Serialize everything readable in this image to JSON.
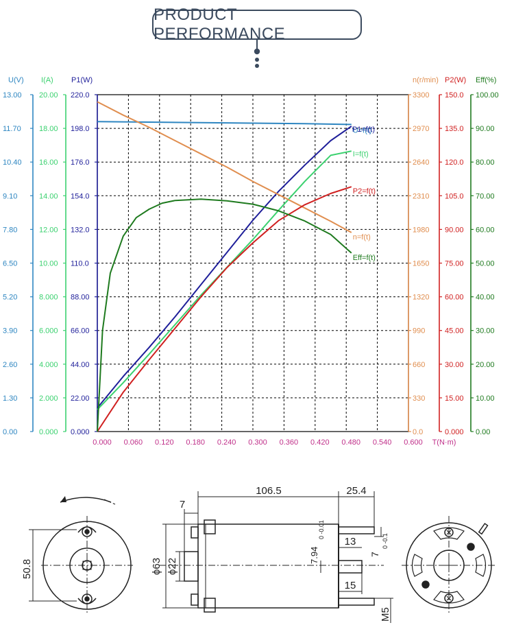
{
  "page": {
    "title": "PRODUCT PERFORMANCE"
  },
  "colors": {
    "u": "#2e86c1",
    "i": "#3bd16f",
    "p1": "#1f1f9a",
    "n": "#e08e4f",
    "p2": "#d02020",
    "eff": "#1e7a1e",
    "t": "#c0308a",
    "title": "#3b4a5e"
  },
  "chart_data": {
    "type": "line",
    "x_axis": {
      "label": "T(N·m)",
      "range": [
        0,
        0.6
      ],
      "ticks": [
        "0.000",
        "0.060",
        "0.120",
        "0.180",
        "0.240",
        "0.300",
        "0.360",
        "0.420",
        "0.480",
        "0.540",
        "0.600"
      ]
    },
    "left_axes": [
      {
        "key": "u",
        "label": "U(V)",
        "range": [
          0,
          13
        ],
        "ticks": [
          "0.00",
          "1.30",
          "2.60",
          "3.90",
          "5.20",
          "6.50",
          "7.80",
          "9.10",
          "10.40",
          "11.70",
          "13.00"
        ]
      },
      {
        "key": "i",
        "label": "I(A)",
        "range": [
          0,
          20
        ],
        "ticks": [
          "0.000",
          "2.000",
          "4.000",
          "6.000",
          "8.000",
          "10.00",
          "12.00",
          "14.00",
          "16.00",
          "18.00",
          "20.00"
        ]
      },
      {
        "key": "p1",
        "label": "P1(W)",
        "range": [
          0,
          220
        ],
        "ticks": [
          "0.000",
          "22.00",
          "44.00",
          "66.00",
          "88.00",
          "110.0",
          "132.0",
          "154.0",
          "176.0",
          "198.0",
          "220.0"
        ]
      }
    ],
    "right_axes": [
      {
        "key": "n",
        "label": "n(r/min)",
        "range": [
          0,
          3300
        ],
        "ticks": [
          "0.0",
          "330",
          "660",
          "990",
          "1320",
          "1650",
          "1980",
          "2310",
          "2640",
          "2970",
          "3300"
        ]
      },
      {
        "key": "p2",
        "label": "P2(W)",
        "range": [
          0,
          150
        ],
        "ticks": [
          "0.000",
          "15.00",
          "30.00",
          "45.00",
          "60.00",
          "75.00",
          "90.00",
          "105.0",
          "120.0",
          "135.0",
          "150.0"
        ]
      },
      {
        "key": "eff",
        "label": "Eff(%)",
        "range": [
          0,
          100
        ],
        "ticks": [
          "0.00",
          "10.00",
          "20.00",
          "30.00",
          "40.00",
          "50.00",
          "60.00",
          "70.00",
          "80.00",
          "90.00",
          "100.00"
        ]
      }
    ],
    "series": [
      {
        "key": "u",
        "name": "U=f(t)",
        "axis": "u",
        "x": [
          0,
          0.1,
          0.2,
          0.3,
          0.4,
          0.49
        ],
        "y": [
          11.96,
          11.94,
          11.92,
          11.9,
          11.88,
          11.85
        ]
      },
      {
        "key": "p1",
        "name": "P1=f(t)",
        "axis": "p1",
        "x": [
          0,
          0.05,
          0.1,
          0.15,
          0.2,
          0.25,
          0.3,
          0.35,
          0.4,
          0.45,
          0.49
        ],
        "y": [
          15.4,
          36,
          55,
          75,
          96,
          117,
          138,
          157,
          174,
          190,
          199.4
        ]
      },
      {
        "key": "i",
        "name": "I=f(t)",
        "axis": "i",
        "x": [
          0,
          0.05,
          0.1,
          0.15,
          0.2,
          0.25,
          0.3,
          0.35,
          0.4,
          0.45,
          0.49
        ],
        "y": [
          1.3,
          2.9,
          4.6,
          6.35,
          8.1,
          9.75,
          11.4,
          13.15,
          14.85,
          16.4,
          16.65
        ]
      },
      {
        "key": "n",
        "name": "n=f(t)",
        "axis": "n",
        "x": [
          0,
          0.05,
          0.1,
          0.15,
          0.2,
          0.25,
          0.3,
          0.35,
          0.4,
          0.45,
          0.49
        ],
        "y": [
          3230,
          3100,
          2980,
          2850,
          2720,
          2590,
          2450,
          2320,
          2190,
          2060,
          1950
        ]
      },
      {
        "key": "p2",
        "name": "P2=f(t)",
        "axis": "p2",
        "x": [
          0,
          0.02,
          0.05,
          0.1,
          0.15,
          0.2,
          0.25,
          0.3,
          0.35,
          0.4,
          0.45,
          0.49
        ],
        "y": [
          0,
          7,
          17.5,
          32,
          46,
          60,
          73,
          84,
          94,
          101,
          106,
          109
        ]
      },
      {
        "key": "eff",
        "name": "Eff=f(t)",
        "axis": "eff",
        "x": [
          0,
          0.01,
          0.025,
          0.05,
          0.075,
          0.1,
          0.125,
          0.15,
          0.2,
          0.25,
          0.3,
          0.35,
          0.4,
          0.45,
          0.49
        ],
        "y": [
          0,
          30,
          47,
          58,
          63.5,
          66,
          67.8,
          68.6,
          69,
          68.5,
          67.5,
          65.5,
          62.5,
          58.5,
          53
        ]
      }
    ]
  },
  "drawing": {
    "dims": {
      "d106_5": "106.5",
      "d25_4": "25.4",
      "d7": "7",
      "d13": "13",
      "d15": "15",
      "d7_94": "7.94",
      "d7_94_tol": "0\n-0.01",
      "d7_top": "7",
      "d7_tol": "0\n-0.1",
      "d63": "ϕ63",
      "d22": "ϕ22",
      "d50_8": "50.8",
      "m5": "M5"
    }
  }
}
